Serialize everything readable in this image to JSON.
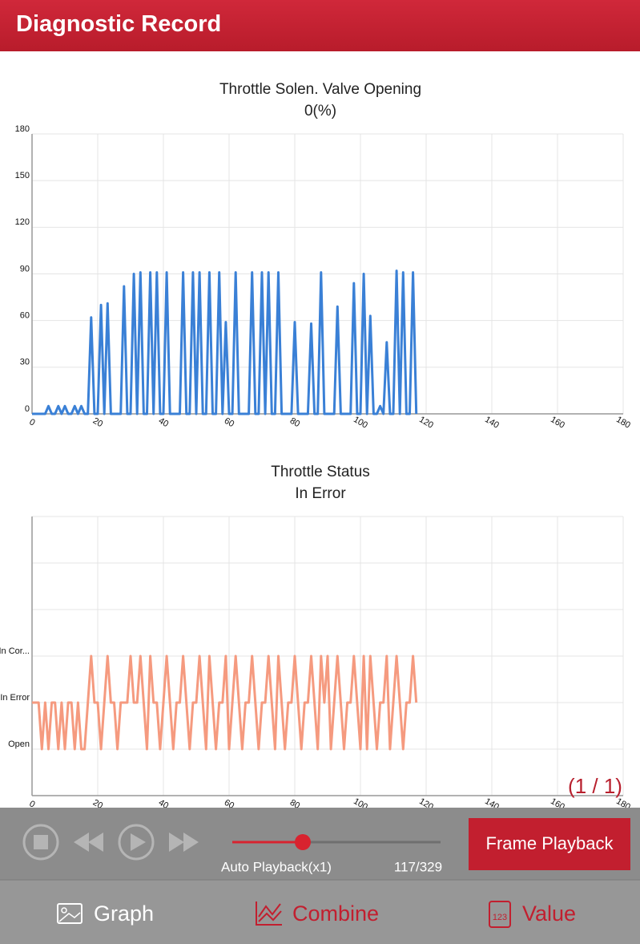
{
  "header": {
    "title": "Diagnostic Record"
  },
  "chart_data": [
    {
      "type": "line",
      "title": "Throttle Solen. Valve Opening",
      "subtitle": "0(%)",
      "color": "#3a80d6",
      "grid": true,
      "x": [
        0,
        1,
        2,
        3,
        4,
        5,
        6,
        7,
        8,
        9,
        10,
        11,
        12,
        13,
        14,
        15,
        16,
        17,
        18,
        19,
        20,
        21,
        22,
        23,
        24,
        25,
        26,
        27,
        28,
        29,
        30,
        31,
        32,
        33,
        34,
        35,
        36,
        37,
        38,
        39,
        40,
        41,
        42,
        43,
        44,
        45,
        46,
        47,
        48,
        49,
        50,
        51,
        52,
        53,
        54,
        55,
        56,
        57,
        58,
        59,
        60,
        61,
        62,
        63,
        64,
        65,
        66,
        67,
        68,
        69,
        70,
        71,
        72,
        73,
        74,
        75,
        76,
        77,
        78,
        79,
        80,
        81,
        82,
        83,
        84,
        85,
        86,
        87,
        88,
        89,
        90,
        91,
        92,
        93,
        94,
        95,
        96,
        97,
        98,
        99,
        100,
        101,
        102,
        103,
        104,
        105,
        106,
        107,
        108,
        109,
        110,
        111,
        112,
        113,
        114,
        115,
        116,
        117
      ],
      "values": [
        0,
        0,
        0,
        0,
        0,
        5,
        0,
        0,
        5,
        0,
        5,
        0,
        0,
        5,
        0,
        5,
        0,
        0,
        62,
        0,
        0,
        70,
        0,
        71,
        0,
        0,
        0,
        0,
        82,
        0,
        0,
        90,
        0,
        91,
        0,
        0,
        91,
        0,
        91,
        0,
        0,
        91,
        0,
        0,
        0,
        0,
        91,
        0,
        0,
        91,
        0,
        91,
        0,
        0,
        91,
        0,
        0,
        91,
        0,
        59,
        0,
        0,
        91,
        0,
        0,
        0,
        0,
        91,
        0,
        0,
        91,
        0,
        91,
        0,
        0,
        91,
        0,
        0,
        0,
        0,
        59,
        0,
        0,
        0,
        0,
        58,
        0,
        0,
        91,
        0,
        0,
        0,
        0,
        69,
        0,
        0,
        0,
        0,
        84,
        0,
        0,
        90,
        0,
        63,
        0,
        0,
        5,
        0,
        46,
        0,
        0,
        92,
        0,
        91,
        0,
        0,
        91,
        0
      ],
      "xlim": [
        0,
        180
      ],
      "xticks": [
        0,
        20,
        40,
        60,
        80,
        100,
        120,
        140,
        160,
        180
      ],
      "ylim": [
        0,
        180
      ],
      "yticks": [
        0,
        30,
        60,
        90,
        120,
        150,
        180
      ]
    },
    {
      "type": "line",
      "title": "Throttle Status",
      "subtitle": "In Error",
      "color": "#f59a7f",
      "grid": true,
      "x": [
        0,
        1,
        2,
        3,
        4,
        5,
        6,
        7,
        8,
        9,
        10,
        11,
        12,
        13,
        14,
        15,
        16,
        17,
        18,
        19,
        20,
        21,
        22,
        23,
        24,
        25,
        26,
        27,
        28,
        29,
        30,
        31,
        32,
        33,
        34,
        35,
        36,
        37,
        38,
        39,
        40,
        41,
        42,
        43,
        44,
        45,
        46,
        47,
        48,
        49,
        50,
        51,
        52,
        53,
        54,
        55,
        56,
        57,
        58,
        59,
        60,
        61,
        62,
        63,
        64,
        65,
        66,
        67,
        68,
        69,
        70,
        71,
        72,
        73,
        74,
        75,
        76,
        77,
        78,
        79,
        80,
        81,
        82,
        83,
        84,
        85,
        86,
        87,
        88,
        89,
        90,
        91,
        92,
        93,
        94,
        95,
        96,
        97,
        98,
        99,
        100,
        101,
        102,
        103,
        104,
        105,
        106,
        107,
        108,
        109,
        110,
        111,
        112,
        113,
        114,
        115,
        116,
        117
      ],
      "values": [
        2,
        2,
        2,
        1,
        2,
        1,
        2,
        2,
        1,
        2,
        1,
        2,
        2,
        1,
        2,
        1,
        1,
        2,
        3,
        2,
        2,
        1,
        2,
        3,
        2,
        2,
        1,
        2,
        2,
        2,
        3,
        2,
        2,
        3,
        2,
        1,
        3,
        2,
        2,
        1,
        2,
        3,
        2,
        1,
        2,
        2,
        3,
        2,
        1,
        2,
        2,
        3,
        2,
        1,
        3,
        2,
        1,
        2,
        2,
        3,
        1,
        2,
        3,
        2,
        1,
        2,
        2,
        3,
        2,
        1,
        2,
        2,
        3,
        2,
        1,
        3,
        2,
        1,
        2,
        2,
        3,
        2,
        1,
        2,
        2,
        3,
        2,
        1,
        3,
        2,
        3,
        1,
        2,
        3,
        2,
        1,
        2,
        2,
        3,
        2,
        1,
        3,
        1,
        3,
        2,
        1,
        2,
        2,
        3,
        1,
        2,
        3,
        2,
        1,
        2,
        2,
        3,
        2
      ],
      "xlim": [
        0,
        180
      ],
      "xticks": [
        0,
        20,
        40,
        60,
        80,
        100,
        120,
        140,
        160,
        180
      ],
      "ylim": [
        0,
        6
      ],
      "yticks": [
        {
          "value": 1,
          "label": "Open"
        },
        {
          "value": 2,
          "label": "In Error"
        },
        {
          "value": 3,
          "label": "In Cor..."
        }
      ],
      "ygrid": [
        1,
        2,
        3,
        4,
        5,
        6
      ]
    }
  ],
  "page_indicator": "(1 / 1)",
  "playback": {
    "speed_label": "Auto Playback(x1)",
    "position": "117/329",
    "frame_button": "Frame Playback"
  },
  "tabs": [
    {
      "label": "Graph"
    },
    {
      "label": "Combine"
    },
    {
      "label": "Value",
      "icon_text": "123"
    }
  ]
}
